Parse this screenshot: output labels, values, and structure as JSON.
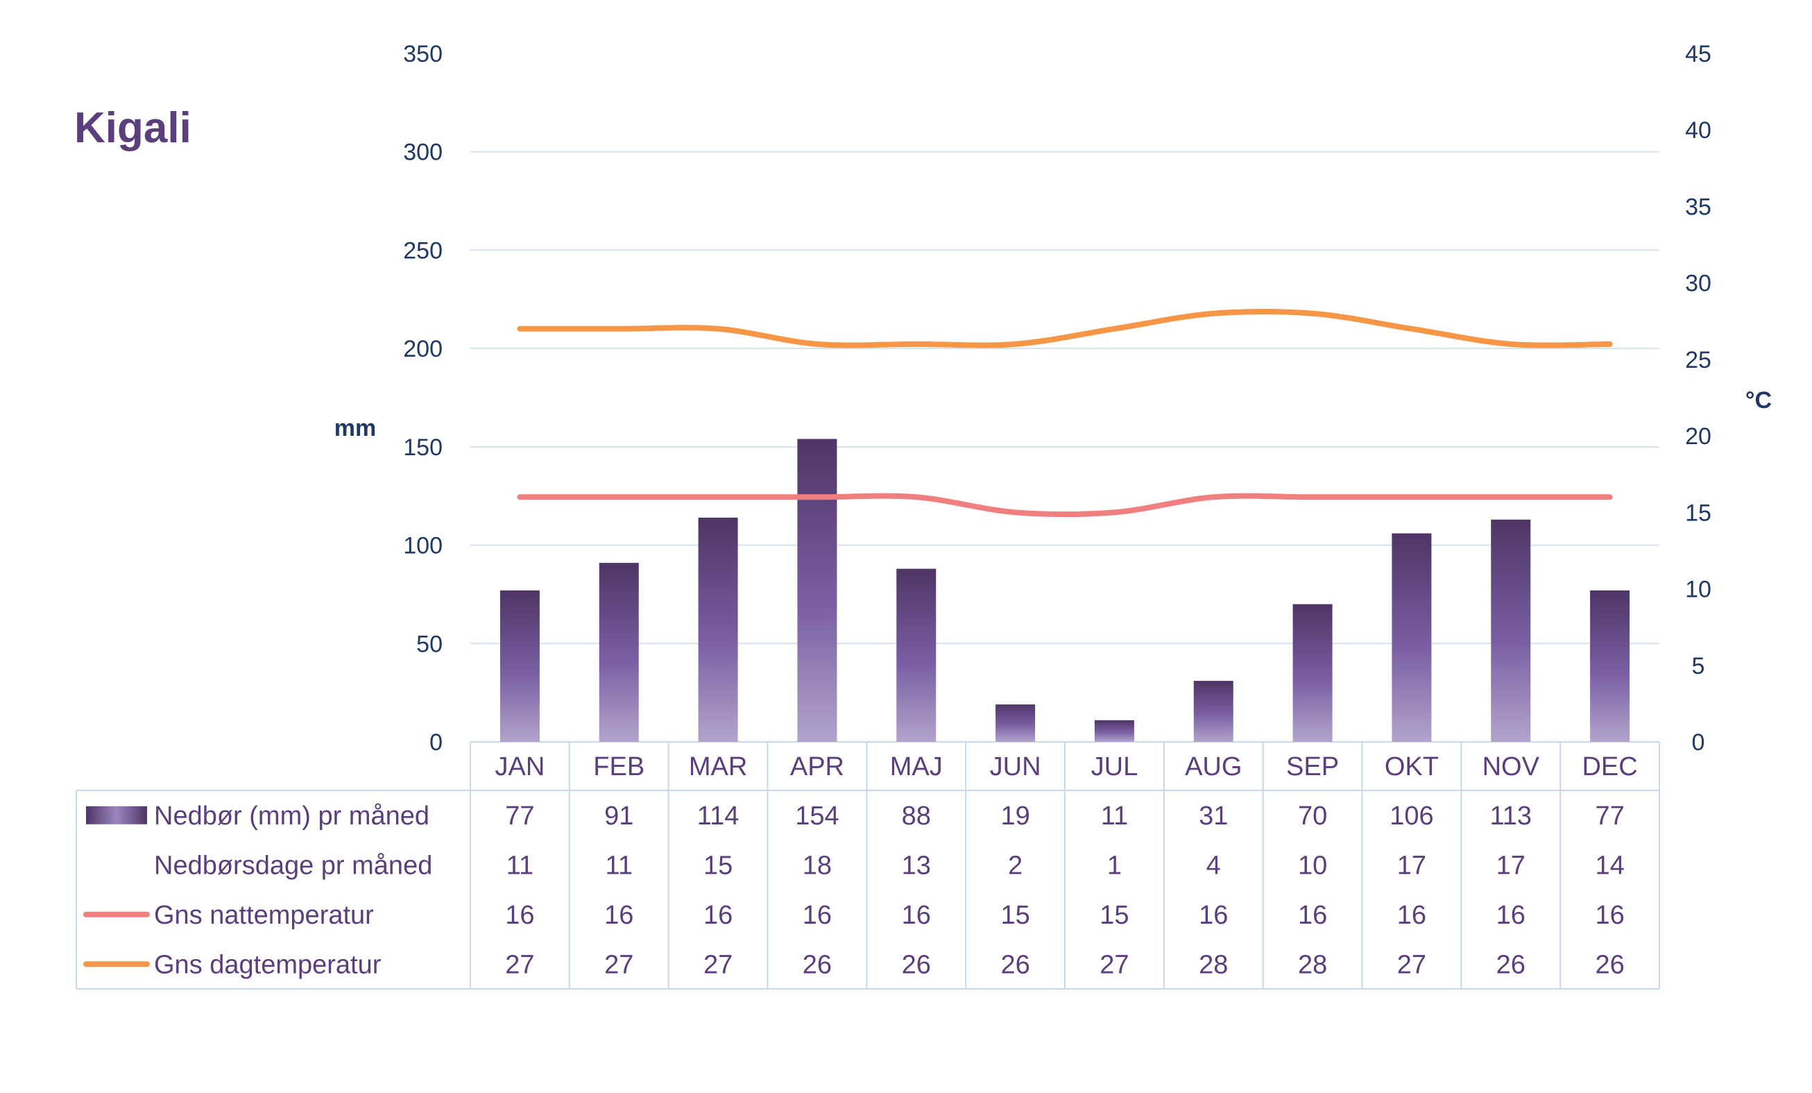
{
  "chart_data": {
    "type": "bar",
    "title": "Kigali",
    "ylabel_left": "mm",
    "ylabel_right": "°C",
    "ylim_left": [
      0,
      350
    ],
    "ylim_right": [
      0,
      45
    ],
    "yticks_left": [
      "0",
      "50",
      "100",
      "150",
      "200",
      "250",
      "300",
      "350"
    ],
    "yticks_right": [
      "0",
      "5",
      "10",
      "15",
      "20",
      "25",
      "30",
      "35",
      "40",
      "45"
    ],
    "grid": true,
    "categories": [
      "JAN",
      "FEB",
      "MAR",
      "APR",
      "MAJ",
      "JUN",
      "JUL",
      "AUG",
      "SEP",
      "OKT",
      "NOV",
      "DEC"
    ],
    "series": [
      {
        "name": "Nedbør (mm) pr måned",
        "kind": "bar",
        "axis": "left",
        "color": "#5b3f7c",
        "values": [
          77,
          91,
          114,
          154,
          88,
          19,
          11,
          31,
          70,
          106,
          113,
          77
        ]
      },
      {
        "name": "Nedbørsdage pr måned",
        "kind": "table",
        "values": [
          11,
          11,
          15,
          18,
          13,
          2,
          1,
          4,
          10,
          17,
          17,
          14
        ]
      },
      {
        "name": "Gns nattemperatur",
        "kind": "line",
        "axis": "right",
        "color": "#f08080",
        "values": [
          16,
          16,
          16,
          16,
          16,
          15,
          15,
          16,
          16,
          16,
          16,
          16
        ]
      },
      {
        "name": "Gns dagtemperatur",
        "kind": "line",
        "axis": "right",
        "color": "#f79646",
        "values": [
          27,
          27,
          27,
          26,
          26,
          26,
          27,
          28,
          28,
          27,
          26,
          26
        ]
      }
    ]
  }
}
